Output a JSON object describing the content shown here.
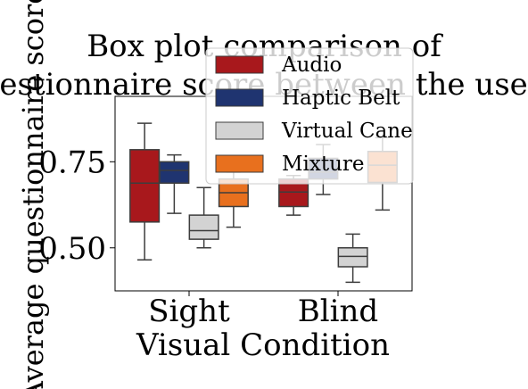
{
  "chart_data": {
    "type": "box",
    "title_lines": [
      "Box plot comparison of",
      "questionnaire score between the users."
    ],
    "xlabel": "Visual Condition",
    "ylabel": "Average questionnaire score",
    "categories": [
      "Sight",
      "Blind"
    ],
    "ylim": [
      0.375,
      0.94
    ],
    "yticks": [
      0.5,
      0.75
    ],
    "ytick_labels": [
      "0.50",
      "0.75"
    ],
    "grid": false,
    "legend_position": "upper-center",
    "series": [
      {
        "name": "Audio",
        "color": "#a8181c",
        "boxes": [
          {
            "category": "Sight",
            "whisker_low": 0.465,
            "q1": 0.575,
            "median": 0.688,
            "q3": 0.785,
            "whisker_high": 0.862
          },
          {
            "category": "Blind",
            "whisker_low": 0.595,
            "q1": 0.62,
            "median": 0.662,
            "q3": 0.7,
            "whisker_high": 0.71
          }
        ]
      },
      {
        "name": "Haptic Belt",
        "color": "#1f3470",
        "boxes": [
          {
            "category": "Sight",
            "whisker_low": 0.6,
            "q1": 0.688,
            "median": 0.725,
            "q3": 0.75,
            "whisker_high": 0.77
          },
          {
            "category": "Blind",
            "whisker_low": 0.655,
            "q1": 0.7,
            "median": 0.72,
            "q3": 0.76,
            "whisker_high": 0.8
          }
        ]
      },
      {
        "name": "Virtual Cane",
        "color": "#d3d3d3",
        "boxes": [
          {
            "category": "Sight",
            "whisker_low": 0.5,
            "q1": 0.525,
            "median": 0.55,
            "q3": 0.595,
            "whisker_high": 0.675
          },
          {
            "category": "Blind",
            "whisker_low": 0.4,
            "q1": 0.445,
            "median": 0.475,
            "q3": 0.5,
            "whisker_high": 0.54
          }
        ]
      },
      {
        "name": "Mixture",
        "color": "#e8701e",
        "boxes": [
          {
            "category": "Sight",
            "whisker_low": 0.56,
            "q1": 0.62,
            "median": 0.66,
            "q3": 0.7,
            "whisker_high": 0.72
          },
          {
            "category": "Blind",
            "whisker_low": 0.61,
            "q1": 0.69,
            "median": 0.74,
            "q3": 0.78,
            "whisker_high": 0.82
          }
        ]
      }
    ]
  }
}
